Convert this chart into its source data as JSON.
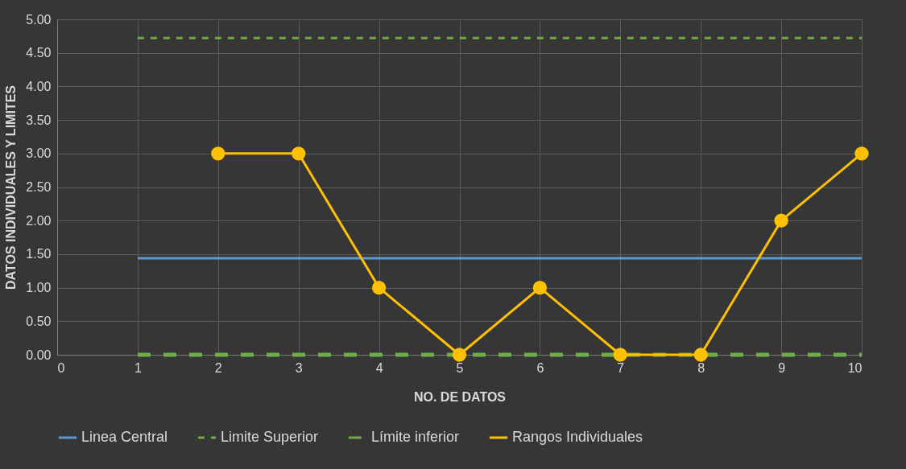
{
  "chart_data": {
    "type": "line",
    "xlabel": "NO. DE DATOS",
    "ylabel": "DATOS INDIVIDUALES Y LIMITES",
    "x": [
      1,
      2,
      3,
      4,
      5,
      6,
      7,
      8,
      9,
      10
    ],
    "series": [
      {
        "name": "Linea Central",
        "color": "#5b9bd5",
        "line_style": "solid",
        "marker": "none",
        "values": [
          1.44,
          1.44,
          1.44,
          1.44,
          1.44,
          1.44,
          1.44,
          1.44,
          1.44,
          1.44
        ]
      },
      {
        "name": "Limite Superior",
        "color": "#70ad47",
        "line_style": "dashed",
        "marker": "none",
        "values": [
          4.72,
          4.72,
          4.72,
          4.72,
          4.72,
          4.72,
          4.72,
          4.72,
          4.72,
          4.72
        ]
      },
      {
        "name": "Límite inferior",
        "color": "#70ad47",
        "line_style": "dashed",
        "marker": "none",
        "values": [
          0,
          0,
          0,
          0,
          0,
          0,
          0,
          0,
          0,
          0
        ]
      },
      {
        "name": "Rangos Individuales",
        "color": "#ffc000",
        "line_style": "solid",
        "marker": "circle",
        "values": [
          null,
          3,
          3,
          1,
          0,
          1,
          0,
          0,
          2,
          3
        ]
      }
    ],
    "xlim": [
      0,
      10
    ],
    "xticks": [
      0,
      1,
      2,
      3,
      4,
      5,
      6,
      7,
      8,
      9,
      10
    ],
    "ylim": [
      0,
      5
    ],
    "yticks": [
      {
        "value": 0,
        "label": "0.00"
      },
      {
        "value": 0.5,
        "label": "0.50"
      },
      {
        "value": 1,
        "label": "1.00"
      },
      {
        "value": 1.5,
        "label": "1.50"
      },
      {
        "value": 2,
        "label": "2.00"
      },
      {
        "value": 2.5,
        "label": "2.50"
      },
      {
        "value": 3,
        "label": "3.00"
      },
      {
        "value": 3.5,
        "label": "3.50"
      },
      {
        "value": 4,
        "label": "4.00"
      },
      {
        "value": 4.5,
        "label": "4.50"
      },
      {
        "value": 5,
        "label": "5.00"
      }
    ],
    "grid": true,
    "legend": "bottom"
  }
}
